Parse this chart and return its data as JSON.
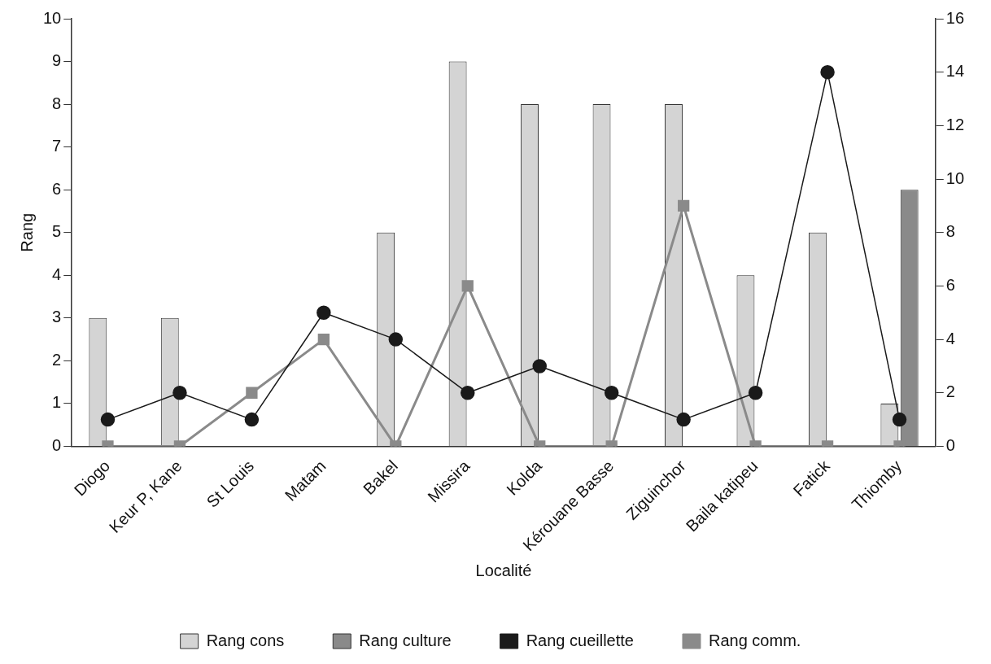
{
  "chart_data": {
    "type": "bar",
    "xlabel": "Localité",
    "ylabel": "Rang",
    "categories": [
      "Diogo",
      "Keur P, Kane",
      "St Louis",
      "Matam",
      "Bakel",
      "Missira",
      "Kolda",
      "Kérouane Basse",
      "Ziguinchor",
      "Baila katipeu",
      "Fatick",
      "Thiomby"
    ],
    "series": [
      {
        "name": "Rang cons",
        "color": "#d4d4d4",
        "values": [
          3,
          3,
          null,
          null,
          5,
          9,
          8,
          8,
          8,
          4,
          5,
          1
        ]
      },
      {
        "name": "Rang culture",
        "color": "#8a8a8a",
        "values": [
          null,
          null,
          null,
          null,
          null,
          null,
          null,
          null,
          null,
          null,
          null,
          6
        ]
      },
      {
        "name": "Rang cueillette",
        "type": "line",
        "axis": "y2",
        "color": "#1a1a1a",
        "marker": "circle",
        "values": [
          1,
          2,
          1,
          5,
          4,
          2,
          3,
          2,
          1,
          2,
          14,
          1
        ]
      },
      {
        "name": "Rang comm.",
        "type": "line",
        "axis": "y2",
        "color": "#8a8a8a",
        "marker": "square",
        "values": [
          0,
          0,
          2,
          4,
          0,
          6,
          0,
          0,
          9,
          0,
          0,
          0
        ]
      }
    ],
    "ylim": [
      0,
      10
    ],
    "yticks": [
      0,
      1,
      2,
      3,
      4,
      5,
      6,
      7,
      8,
      9,
      10
    ],
    "y2lim": [
      0,
      16
    ],
    "y2ticks": [
      0,
      2,
      4,
      6,
      8,
      10,
      12,
      14,
      16
    ],
    "grid": false,
    "legend": "bottom",
    "line_style": "solid"
  }
}
